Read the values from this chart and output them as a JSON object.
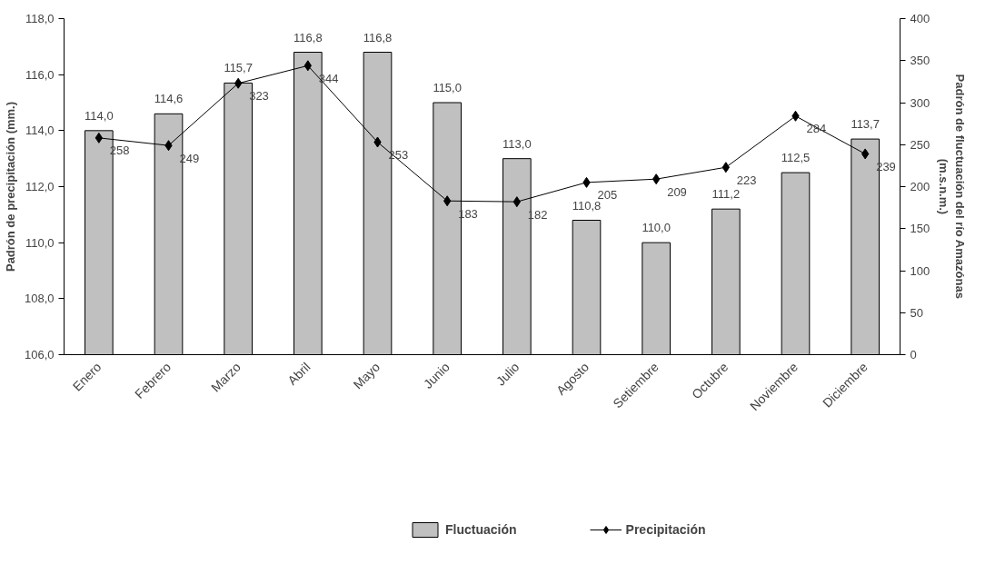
{
  "chart_data": {
    "type": "bar",
    "categories": [
      "Enero",
      "Febrero",
      "Marzo",
      "Abril",
      "Mayo",
      "Junio",
      "Julio",
      "Agosto",
      "Setiembre",
      "Octubre",
      "Noviembre",
      "Diciembre"
    ],
    "series": [
      {
        "name": "Fluctuación",
        "type": "bar",
        "color": "#c0c0c0",
        "values": [
          114.0,
          114.6,
          115.7,
          116.8,
          116.8,
          115.0,
          113.0,
          110.8,
          110.0,
          111.2,
          112.5,
          113.7
        ],
        "value_labels": [
          "114,0",
          "114,6",
          "115,7",
          "116,8",
          "116,8",
          "115,0",
          "113,0",
          "110,8",
          "110,0",
          "111,2",
          "112,5",
          "113,7"
        ]
      },
      {
        "name": "Precipitación",
        "type": "line",
        "axis": "y2",
        "color": "#000000",
        "marker": "diamond",
        "values": [
          258,
          249,
          323,
          344,
          253,
          183,
          182,
          205,
          209,
          223,
          284,
          239
        ],
        "value_labels": [
          "258",
          "249",
          "323",
          "344",
          "253",
          "183",
          "182",
          "205",
          "209",
          "223",
          "284",
          "239"
        ]
      }
    ],
    "ylabel": "Padrón de precipitación (mm.)",
    "y2label": "Padrón de fluctuación del río Amazónas\n(m.s.n.m.)",
    "ylim": [
      106,
      118
    ],
    "yticks": [
      {
        "value": 106,
        "label": "106,0"
      },
      {
        "value": 108,
        "label": "108,0"
      },
      {
        "value": 110,
        "label": "110,0"
      },
      {
        "value": 112,
        "label": "112,0"
      },
      {
        "value": 114,
        "label": "114,0"
      },
      {
        "value": 116,
        "label": "116,0"
      },
      {
        "value": 118,
        "label": "118,0"
      }
    ],
    "y2lim": [
      0,
      400
    ],
    "y2ticks": [
      0,
      50,
      100,
      150,
      200,
      250,
      300,
      350,
      400
    ],
    "legend": "bottom",
    "grid": false
  }
}
